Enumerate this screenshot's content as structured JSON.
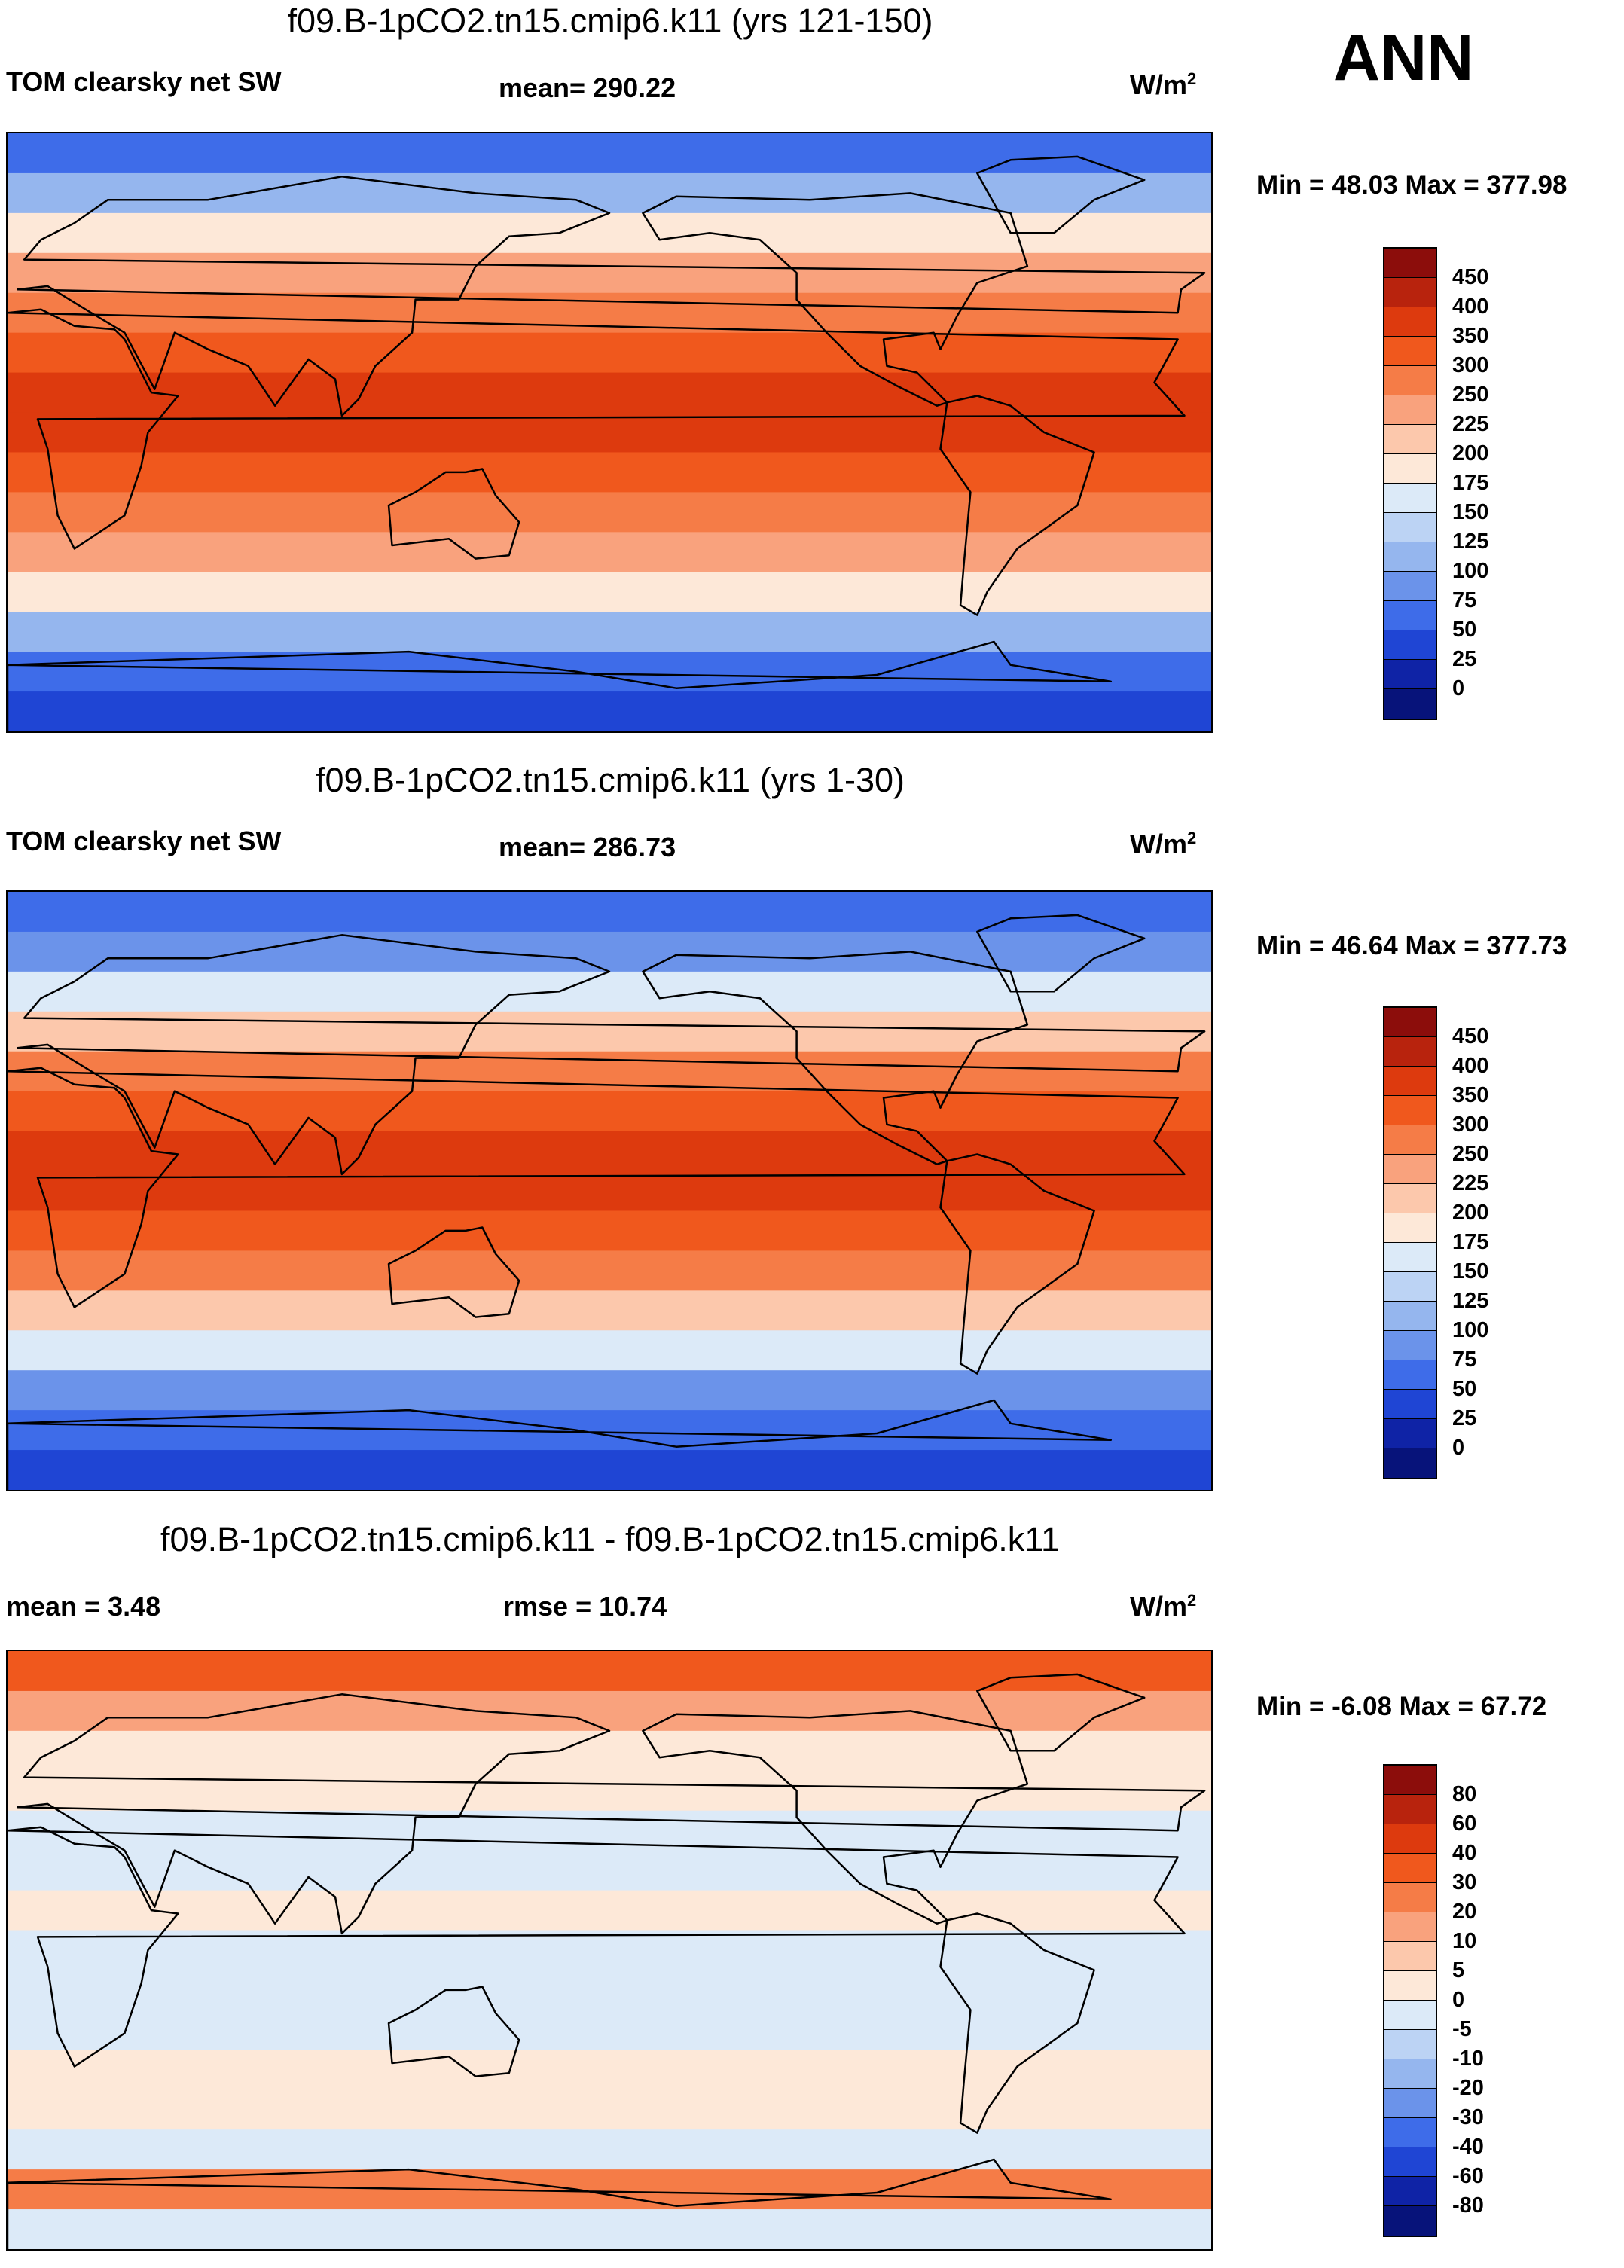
{
  "page_label": "ANN",
  "chart_data": [
    {
      "type": "heatmap",
      "title": "f09.B-1pCO2.tn15.cmip6.k11 (yrs 121-150)",
      "variable": "TOM clearsky net SW",
      "stat_text": "mean= 290.22",
      "mean": 290.22,
      "units": "W/m",
      "units_sup": "2",
      "minmax_text": "Min =  48.03 Max = 377.98",
      "min": 48.03,
      "max": 377.98,
      "colorbar_labels": [
        "450",
        "400",
        "350",
        "300",
        "250",
        "225",
        "200",
        "175",
        "150",
        "125",
        "100",
        "75",
        "50",
        "25",
        "0"
      ],
      "colorbar_colors": [
        "#8c0d0b",
        "#b8230d",
        "#dd3a0e",
        "#f0581d",
        "#f57c47",
        "#f9a27d",
        "#fcc8ac",
        "#fde8d8",
        "#dceaf8",
        "#bcd3f4",
        "#95b6ee",
        "#6b93ea",
        "#3e6ce9",
        "#1f45d4",
        "#0f23a6",
        "#07137a"
      ],
      "band_colors": [
        "#3e6ce9",
        "#95b6ee",
        "#fde8d8",
        "#f9a27d",
        "#f57c47",
        "#f0581d",
        "#dd3a0e",
        "#dd3a0e",
        "#f0581d",
        "#f57c47",
        "#f9a27d",
        "#fde8d8",
        "#95b6ee",
        "#3e6ce9",
        "#1f45d4"
      ]
    },
    {
      "type": "heatmap",
      "title": "f09.B-1pCO2.tn15.cmip6.k11 (yrs 1-30)",
      "variable": "TOM clearsky net SW",
      "stat_text": "mean= 286.73",
      "mean": 286.73,
      "units": "W/m",
      "units_sup": "2",
      "minmax_text": "Min =  46.64 Max = 377.73",
      "min": 46.64,
      "max": 377.73,
      "colorbar_labels": [
        "450",
        "400",
        "350",
        "300",
        "250",
        "225",
        "200",
        "175",
        "150",
        "125",
        "100",
        "75",
        "50",
        "25",
        "0"
      ],
      "colorbar_colors": [
        "#8c0d0b",
        "#b8230d",
        "#dd3a0e",
        "#f0581d",
        "#f57c47",
        "#f9a27d",
        "#fcc8ac",
        "#fde8d8",
        "#dceaf8",
        "#bcd3f4",
        "#95b6ee",
        "#6b93ea",
        "#3e6ce9",
        "#1f45d4",
        "#0f23a6",
        "#07137a"
      ],
      "band_colors": [
        "#3e6ce9",
        "#6b93ea",
        "#dceaf8",
        "#fcc8ac",
        "#f57c47",
        "#f0581d",
        "#dd3a0e",
        "#dd3a0e",
        "#f0581d",
        "#f57c47",
        "#fcc8ac",
        "#dceaf8",
        "#6b93ea",
        "#3e6ce9",
        "#1f45d4"
      ]
    },
    {
      "type": "heatmap",
      "title": "f09.B-1pCO2.tn15.cmip6.k11 - f09.B-1pCO2.tn15.cmip6.k11",
      "variable": "mean =   3.48",
      "stat_text": "rmse =  10.74",
      "mean": 3.48,
      "rmse": 10.74,
      "units": "W/m",
      "units_sup": "2",
      "minmax_text": "Min =  -6.08 Max =  67.72",
      "min": -6.08,
      "max": 67.72,
      "colorbar_labels": [
        "80",
        "60",
        "40",
        "30",
        "20",
        "10",
        "5",
        "0",
        "-5",
        "-10",
        "-20",
        "-30",
        "-40",
        "-60",
        "-80"
      ],
      "colorbar_colors": [
        "#8c0d0b",
        "#b8230d",
        "#dd3a0e",
        "#f0581d",
        "#f57c47",
        "#f9a27d",
        "#fcc8ac",
        "#fde8d8",
        "#dceaf8",
        "#bcd3f4",
        "#95b6ee",
        "#6b93ea",
        "#3e6ce9",
        "#1f45d4",
        "#0f23a6",
        "#07137a"
      ],
      "band_colors": [
        "#f0581d",
        "#f9a27d",
        "#fde8d8",
        "#fde8d8",
        "#dceaf8",
        "#dceaf8",
        "#fde8d8",
        "#dceaf8",
        "#dceaf8",
        "#dceaf8",
        "#fde8d8",
        "#fde8d8",
        "#dceaf8",
        "#f57c47",
        "#dceaf8"
      ]
    }
  ]
}
